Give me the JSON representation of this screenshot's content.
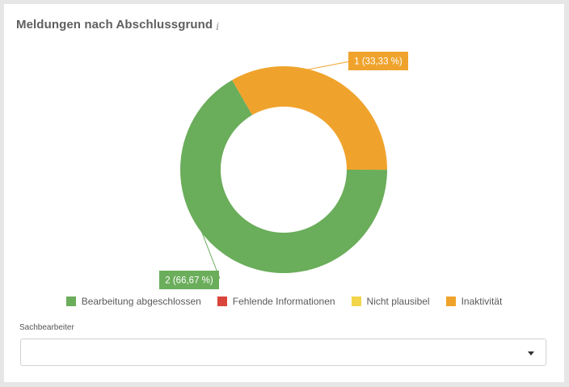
{
  "card": {
    "title": "Meldungen nach Abschlussgrund",
    "info_icon": "info-icon",
    "info_glyph": "i"
  },
  "chart_data": {
    "type": "pie",
    "donut": true,
    "legend_position": "bottom",
    "series": [
      {
        "name": "Bearbeitung abgeschlossen",
        "value": 2,
        "percent": 66.67,
        "color": "#6aad5a",
        "label": "2 (66,67 %)"
      },
      {
        "name": "Fehlende Informationen",
        "value": 0,
        "percent": 0,
        "color": "#d9453a",
        "label": ""
      },
      {
        "name": "Nicht plausibel",
        "value": 0,
        "percent": 0,
        "color": "#f2d54a",
        "label": ""
      },
      {
        "name": "Inaktivität",
        "value": 1,
        "percent": 33.33,
        "color": "#f0a32c",
        "label": "1 (33,33 %)"
      }
    ]
  },
  "filter": {
    "label": "Sachbearbeiter",
    "value": "",
    "dropdown_icon": "caret-down-icon"
  }
}
